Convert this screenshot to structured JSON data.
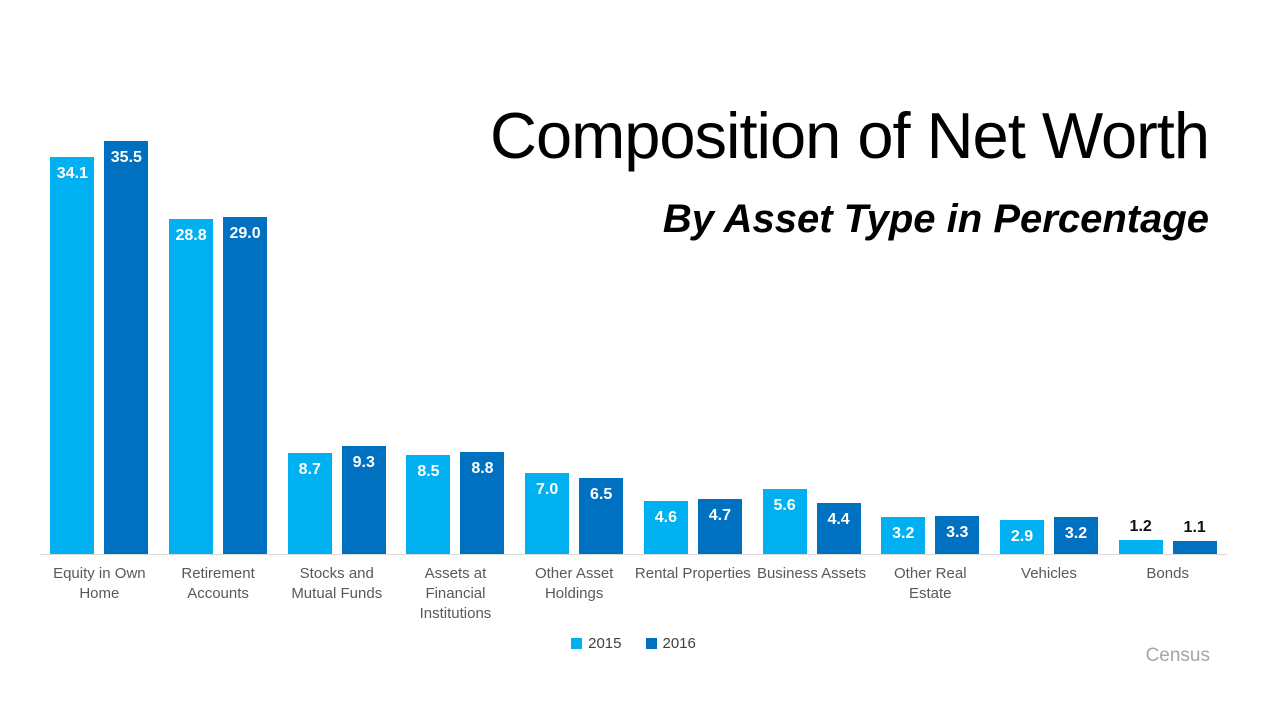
{
  "title": "Composition of Net Worth",
  "subtitle": "By Asset Type in Percentage",
  "source": "Census",
  "colors": {
    "series_2015": "#00B0F0",
    "series_2016": "#0070C0",
    "axis_line": "#D9D9D9",
    "category_label": "#595959",
    "value_label_inside": "#FFFFFF",
    "value_label_outside": "#111111",
    "source_text": "#A6A6A6"
  },
  "legend": [
    {
      "label": "2015",
      "color": "#00B0F0"
    },
    {
      "label": "2016",
      "color": "#0070C0"
    }
  ],
  "chart_data": {
    "type": "bar",
    "title": "Composition of Net Worth",
    "subtitle": "By Asset Type in Percentage",
    "categories": [
      "Equity in Own Home",
      "Retirement Accounts",
      "Stocks and Mutual Funds",
      "Assets at Financial Institutions",
      "Other Asset Holdings",
      "Rental Properties",
      "Business Assets",
      "Other Real Estate",
      "Vehicles",
      "Bonds"
    ],
    "category_lines": [
      [
        "Equity in Own",
        "Home"
      ],
      [
        "Retirement",
        "Accounts"
      ],
      [
        "Stocks and",
        "Mutual Funds"
      ],
      [
        "Assets at",
        "Financial",
        "Institutions"
      ],
      [
        "Other Asset",
        "Holdings"
      ],
      [
        "Rental Properties"
      ],
      [
        "Business Assets"
      ],
      [
        "Other Real Estate"
      ],
      [
        "Vehicles"
      ],
      [
        "Bonds"
      ]
    ],
    "series": [
      {
        "name": "2015",
        "color": "#00B0F0",
        "values": [
          34.1,
          28.8,
          8.7,
          8.5,
          7.0,
          4.6,
          5.6,
          3.2,
          2.9,
          1.2
        ]
      },
      {
        "name": "2016",
        "color": "#0070C0",
        "values": [
          35.5,
          29.0,
          9.3,
          8.8,
          6.5,
          4.7,
          4.4,
          3.3,
          3.2,
          1.1
        ]
      }
    ],
    "xlabel": "",
    "ylabel": "",
    "ylim": [
      0,
      35.5
    ],
    "grid": false,
    "value_labels": true,
    "legend_position": "bottom"
  }
}
